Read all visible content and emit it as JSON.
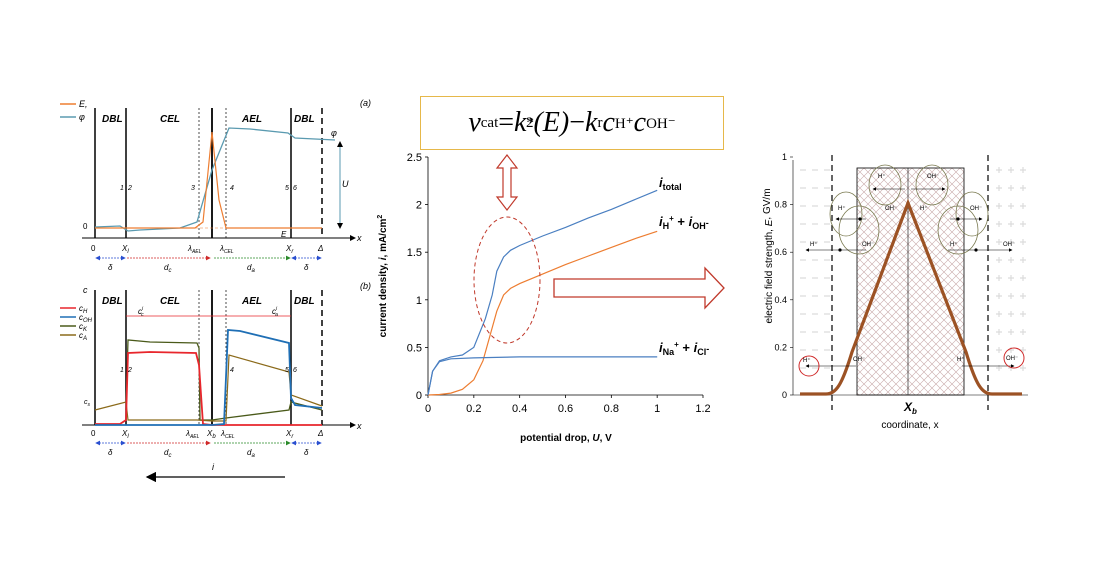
{
  "panel_a": {
    "label": "(a)",
    "legend": [
      "E,",
      "φ"
    ],
    "regions": [
      "DBL",
      "CEL",
      "AEL",
      "DBL"
    ],
    "points": [
      "1",
      "2",
      "3",
      "4",
      "5",
      "6"
    ],
    "x_ticks": [
      "0",
      "X",
      "λ",
      "λ",
      "X",
      "Δ"
    ],
    "x_tick_subs": [
      "",
      "l",
      "AEL",
      "CEL",
      "r",
      ""
    ],
    "widths": [
      "δ",
      "d",
      "d",
      "δ"
    ],
    "width_subs": [
      "",
      "c",
      "a",
      ""
    ],
    "axis_x": "x",
    "zero": "0",
    "phi": "φ",
    "U": "U",
    "E": "E"
  },
  "panel_b": {
    "label": "(b)",
    "y_label": "c",
    "legend": [
      "c",
      "c",
      "c",
      "c"
    ],
    "legend_subs": [
      "H",
      "OH",
      "K",
      "A"
    ],
    "legend_colors": [
      "#e8262c",
      "#1f6fb5",
      "#4a5a1a",
      "#8b6a1a"
    ],
    "regions": [
      "DBL",
      "CEL",
      "AEL",
      "DBL"
    ],
    "points": [
      "1",
      "2",
      "4",
      "5",
      "6"
    ],
    "cc_label": "c",
    "cc_sub": "c",
    "cc_sup": "i",
    "ca_label": "c",
    "ca_sub": "a",
    "ca_sup": "i",
    "cs_label": "c",
    "cs_sub": "s",
    "x_ticks": [
      "0",
      "X",
      "λ",
      "X",
      "λ",
      "X",
      "Δ"
    ],
    "x_tick_subs": [
      "",
      "l",
      "AEL",
      "b",
      "CEL",
      "r",
      ""
    ],
    "widths": [
      "δ",
      "d",
      "d",
      "δ"
    ],
    "width_subs": [
      "",
      "c",
      "a",
      ""
    ],
    "axis_x": "x",
    "current": "i"
  },
  "formula": {
    "nu": "ν",
    "cat": "cat",
    "eq": " = ",
    "k2": "k",
    "k2_sub": "2",
    "k2_sup": "*",
    "E": "(E)",
    "minus": " − ",
    "kr": "k",
    "kr_sub": "r",
    "c1": "c",
    "c1_sub": "H⁺",
    "c2": "c",
    "c2_sub": "OH⁻"
  },
  "chart_middle": {
    "y_label_pre": "current density, ",
    "y_label_var": "i",
    "y_label_post": ", mA/cm",
    "y_label_sup": "2",
    "x_label_pre": "potential drop, ",
    "x_label_var": "U",
    "x_label_post": ", V",
    "y_ticks": [
      "0",
      "0.5",
      "1",
      "1.5",
      "2",
      "2.5"
    ],
    "x_ticks": [
      "0",
      "0.2",
      "0.4",
      "0.6",
      "0.8",
      "1",
      "1.2"
    ],
    "series_labels": {
      "total": {
        "i": "i",
        "sub": "total"
      },
      "h_oh": {
        "i1": "i",
        "s1": "H",
        "p1": "+",
        "plus": " + ",
        "i2": "i",
        "s2": "OH",
        "p2": "-"
      },
      "na_cl": {
        "i1": "i",
        "s1": "Na",
        "p1": "+",
        "plus": " + ",
        "i2": "i",
        "s2": "Cl",
        "p2": "-"
      }
    }
  },
  "chart_data": {
    "type": "line",
    "xlabel": "potential drop, U, V",
    "ylabel": "current density, i, mA/cm2",
    "xlim": [
      0,
      1.2
    ],
    "ylim": [
      0,
      2.5
    ],
    "grid": false,
    "series": [
      {
        "name": "i_total",
        "color": "#4a7fc1",
        "x": [
          0,
          0.02,
          0.05,
          0.1,
          0.15,
          0.2,
          0.25,
          0.28,
          0.3,
          0.33,
          0.36,
          0.4,
          0.5,
          0.6,
          0.7,
          0.8,
          0.9,
          1.0
        ],
        "y": [
          0,
          0.25,
          0.36,
          0.4,
          0.42,
          0.5,
          0.8,
          1.05,
          1.3,
          1.45,
          1.52,
          1.57,
          1.67,
          1.76,
          1.86,
          1.95,
          2.05,
          2.15
        ]
      },
      {
        "name": "i_H+ + i_OH-",
        "color": "#ed7d31",
        "x": [
          0,
          0.05,
          0.1,
          0.15,
          0.2,
          0.24,
          0.27,
          0.3,
          0.33,
          0.36,
          0.4,
          0.5,
          0.6,
          0.7,
          0.8,
          0.9,
          1.0
        ],
        "y": [
          0,
          0.005,
          0.02,
          0.06,
          0.16,
          0.36,
          0.62,
          0.88,
          1.05,
          1.12,
          1.17,
          1.27,
          1.37,
          1.46,
          1.55,
          1.64,
          1.72
        ]
      },
      {
        "name": "i_Na+ + i_Cl-",
        "color": "#4a7fc1",
        "x": [
          0,
          0.02,
          0.05,
          0.1,
          0.2,
          0.3,
          0.4,
          0.6,
          0.8,
          1.0
        ],
        "y": [
          0,
          0.25,
          0.35,
          0.38,
          0.39,
          0.395,
          0.4,
          0.4,
          0.4,
          0.4
        ]
      }
    ]
  },
  "chart_right": {
    "y_label_pre": "electric field strength, ",
    "y_label_var": "E",
    "y_label_sub": "",
    "y_label_post": ", GV/m",
    "x_label": "coordinate, x",
    "y_ticks": [
      "0",
      "0.2",
      "0.4",
      "0.6",
      "0.8",
      "1"
    ],
    "xb": "X",
    "xb_sub": "b",
    "ion_labels": [
      "H⁺",
      "OH⁻",
      "H⁺",
      "OH⁻",
      "H⁺",
      "OH⁻",
      "H⁺",
      "OH⁻",
      "H⁺",
      "OH⁻",
      "H⁺",
      "OH⁻"
    ]
  },
  "colors": {
    "orange": "#ed7d31",
    "blue": "#4a7fc1",
    "teal": "#5a9ab0",
    "red_arrow": "#c0392b",
    "brown": "#9c5224",
    "box_border": "#e6b84a"
  }
}
